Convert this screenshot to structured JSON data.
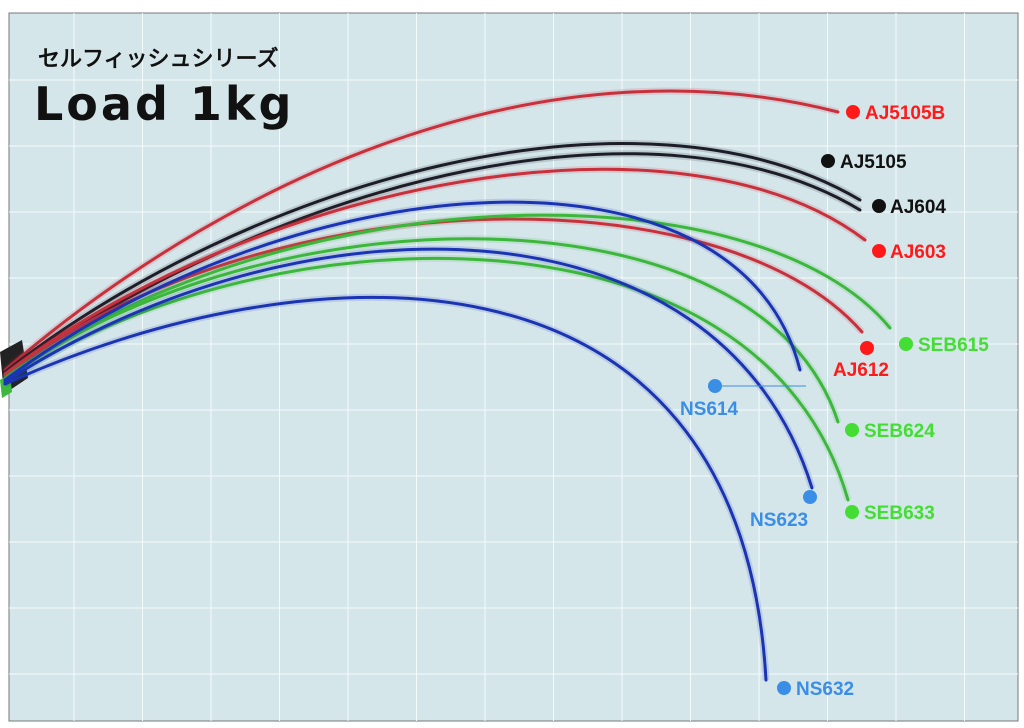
{
  "title": "Load 1kg",
  "subtitle": "セルフィッシュシリーズ",
  "colors": {
    "background": "#d4e6ea",
    "grid": "#f4f9fa",
    "frame": "#777777",
    "red": "#c8323c",
    "black": "#1e1e28",
    "green": "#3cb83c",
    "blue": "#1c34b4",
    "label_red": "#ff1a1a",
    "label_black": "#111111",
    "label_green": "#44dd33",
    "label_blue": "#3a8ee6"
  },
  "chart_data": {
    "type": "line",
    "title": "Load 1kg",
    "subtitle": "セルフィッシュシリーズ",
    "grid": true,
    "legend": "labels at rod tips",
    "series": [
      {
        "name": "AJ5105B",
        "color": "red"
      },
      {
        "name": "AJ5105",
        "color": "black"
      },
      {
        "name": "AJ604",
        "color": "black"
      },
      {
        "name": "AJ603",
        "color": "red"
      },
      {
        "name": "AJ612",
        "color": "red"
      },
      {
        "name": "SEB615",
        "color": "green"
      },
      {
        "name": "SEB624",
        "color": "green"
      },
      {
        "name": "SEB633",
        "color": "green"
      },
      {
        "name": "NS614",
        "color": "blue"
      },
      {
        "name": "NS623",
        "color": "blue"
      },
      {
        "name": "NS632",
        "color": "blue"
      }
    ]
  }
}
